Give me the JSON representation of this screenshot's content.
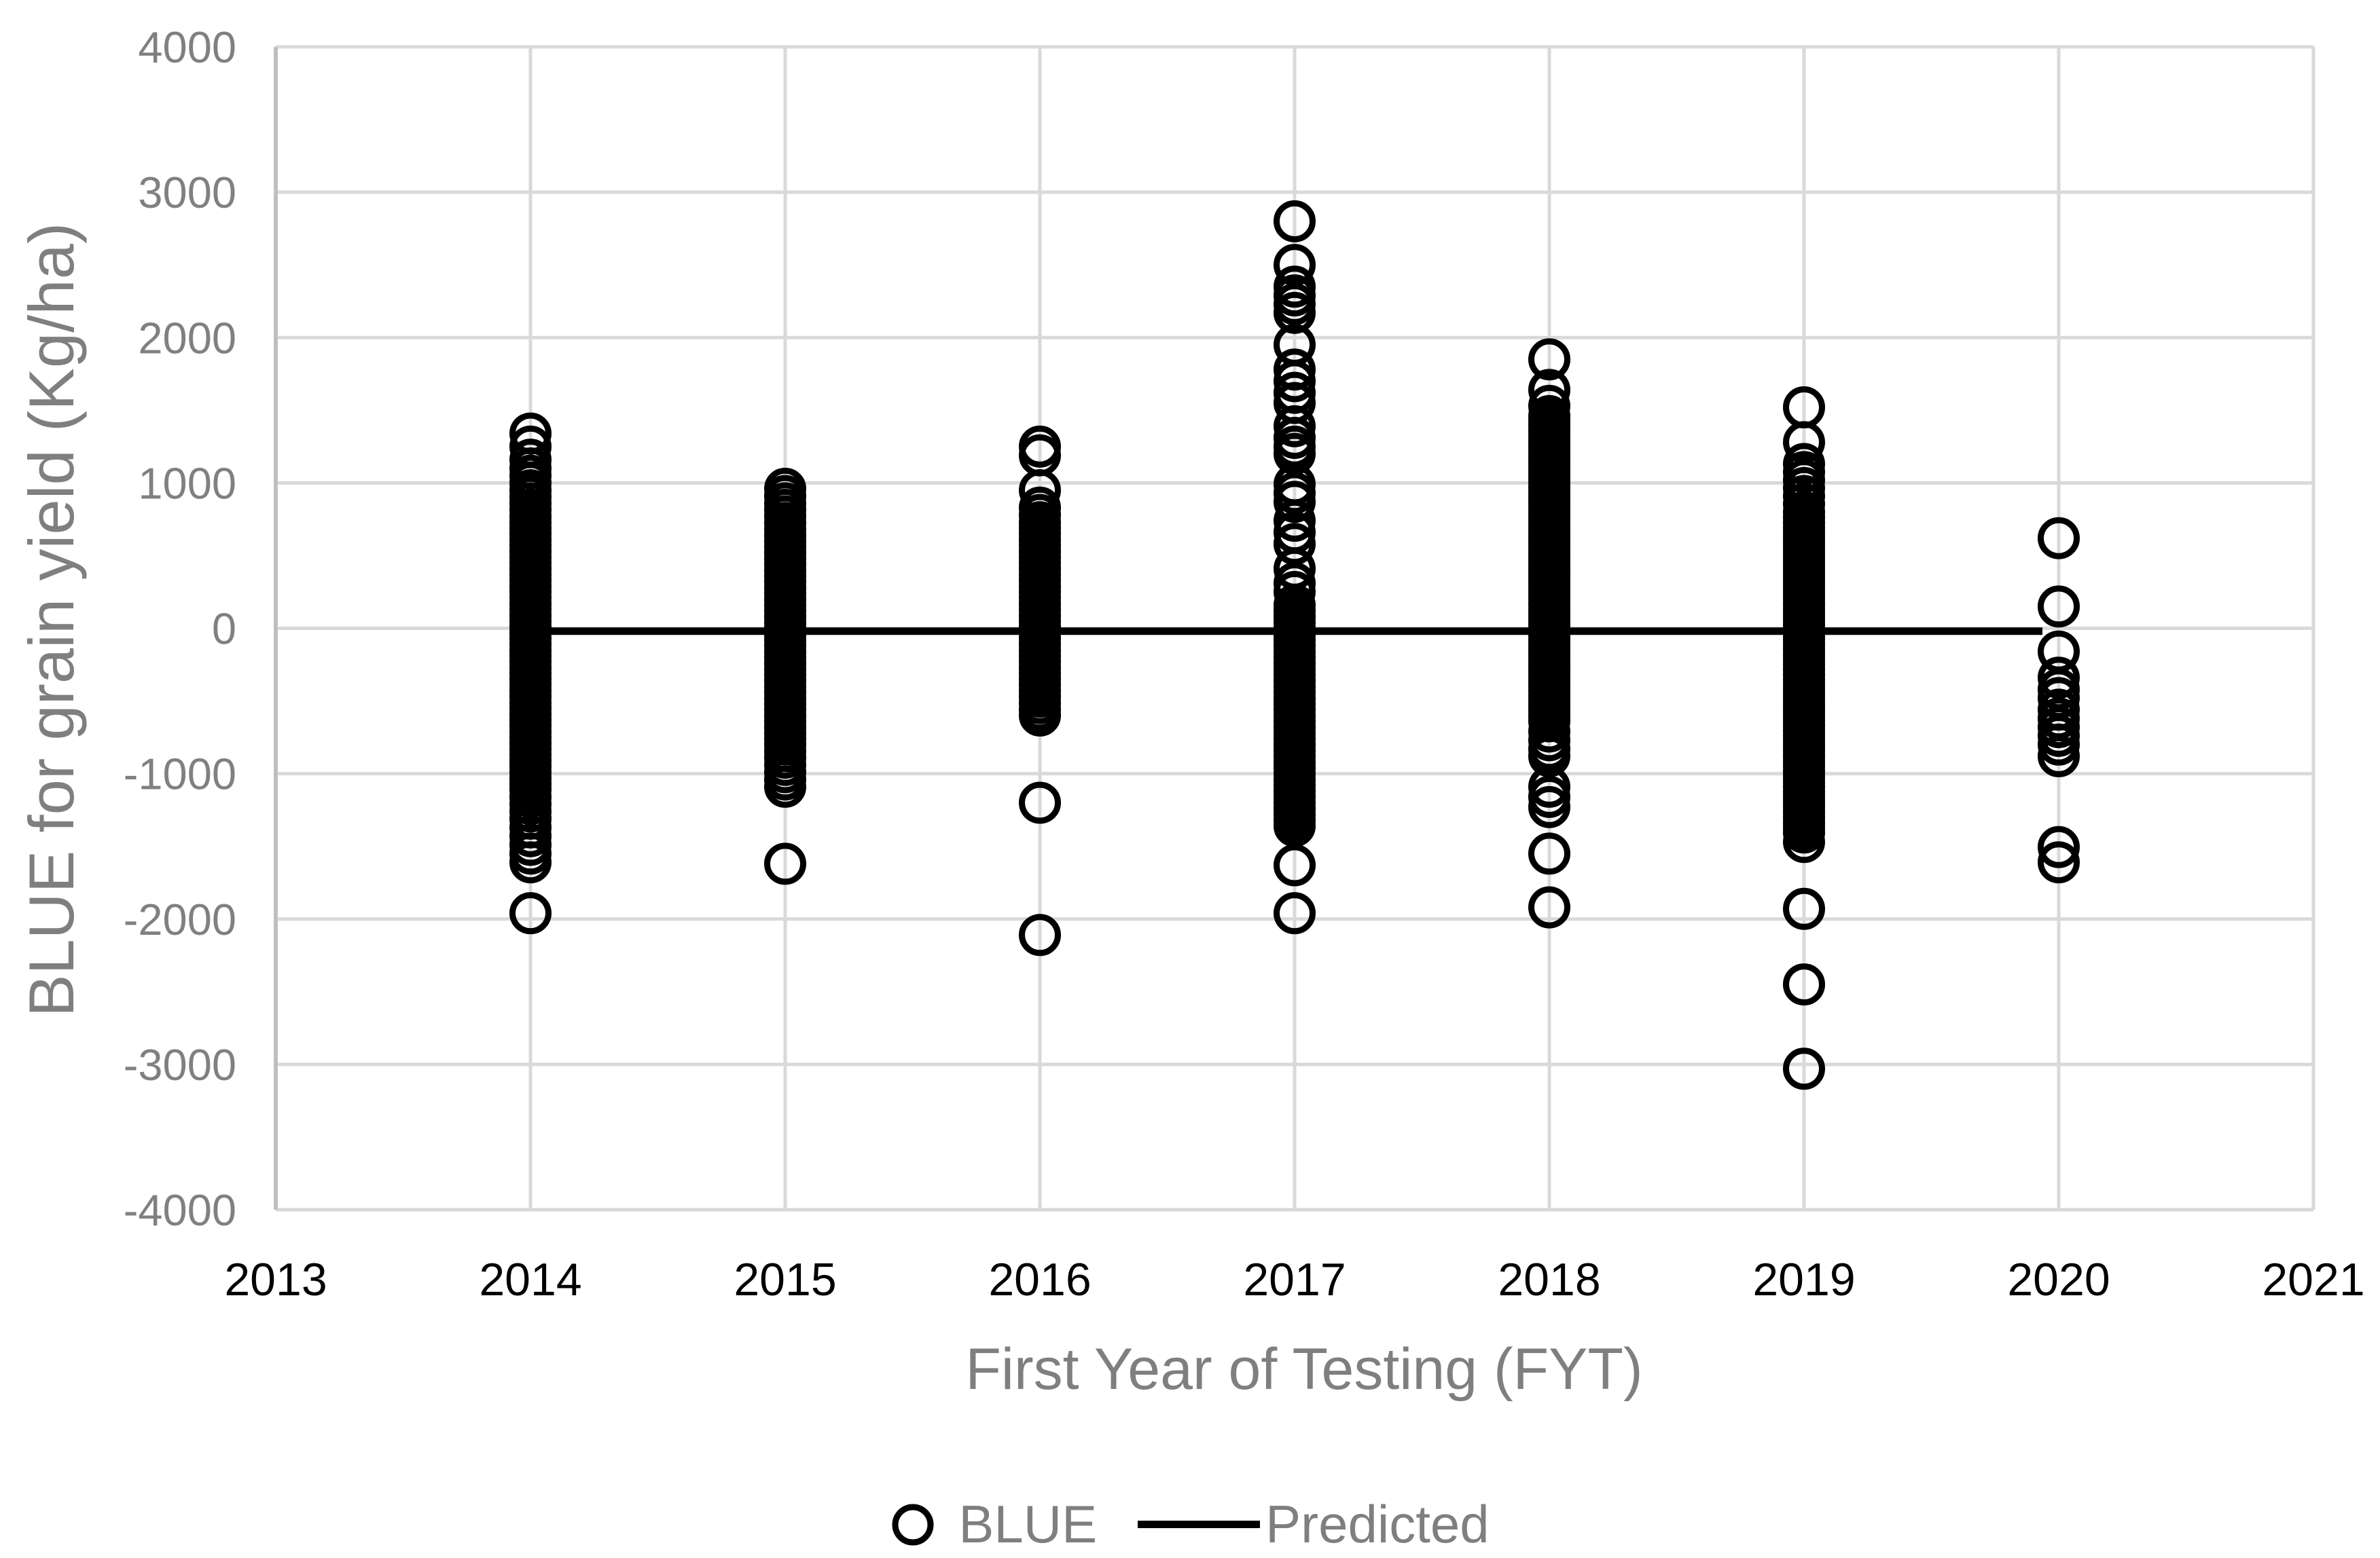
{
  "figure": {
    "background": "#ffffff"
  },
  "style": {
    "marker_color": "#000000",
    "predicted_line_color": "#000000",
    "gridline_color": "#d9d9d9",
    "axis_line_color": "#bfbfbf",
    "y_tick_color": "#808080",
    "x_tick_color": "#000000",
    "title_color": "#7f7f7f",
    "legend_text_color": "#7f7f7f"
  },
  "legend": {
    "items": [
      {
        "label": "BLUE",
        "marker": "open-circle-icon"
      },
      {
        "label": "Predicted",
        "marker": "line-icon"
      }
    ]
  },
  "chart_data": {
    "type": "scatter",
    "title": "",
    "xlabel": "First Year of Testing (FYT)",
    "ylabel": "BLUE for grain yield (Kg/ha)",
    "xlim": [
      2013,
      2021
    ],
    "ylim": [
      -4000,
      4000
    ],
    "x_ticks": [
      2013,
      2014,
      2015,
      2016,
      2017,
      2018,
      2019,
      2020,
      2021
    ],
    "y_ticks": [
      4000,
      3000,
      2000,
      1000,
      0,
      -1000,
      -2000,
      -3000,
      -4000
    ],
    "grid": true,
    "legend_position": "bottom",
    "series": [
      {
        "name": "BLUE",
        "type": "scatter",
        "marker": "open-circle",
        "color": "#000000",
        "groups": [
          {
            "x": 2014,
            "values": [
              1340,
              1250,
              1160,
              1100,
              1050,
              1000,
              950,
              905,
              860,
              815,
              770,
              730,
              690,
              650,
              610,
              570,
              530,
              490,
              450,
              410,
              370,
              330,
              290,
              250,
              210,
              170,
              130,
              90,
              50,
              10,
              -30,
              -70,
              -110,
              -150,
              -190,
              -230,
              -270,
              -310,
              -350,
              -390,
              -430,
              -470,
              -510,
              -550,
              -590,
              -630,
              -670,
              -710,
              -750,
              -790,
              -830,
              -870,
              -910,
              -950,
              -990,
              -1030,
              -1070,
              -1110,
              -1160,
              -1210,
              -1260,
              -1310,
              -1370,
              -1430,
              -1490,
              -1550,
              -1610,
              -1960
            ]
          },
          {
            "x": 2015,
            "values": [
              960,
              910,
              860,
              815,
              770,
              725,
              680,
              640,
              600,
              560,
              520,
              480,
              440,
              400,
              360,
              320,
              280,
              240,
              200,
              160,
              120,
              80,
              40,
              0,
              -40,
              -80,
              -120,
              -160,
              -200,
              -240,
              -280,
              -320,
              -360,
              -400,
              -440,
              -480,
              -520,
              -560,
              -600,
              -640,
              -680,
              -720,
              -760,
              -800,
              -845,
              -890,
              -940,
              -990,
              -1040,
              -1090,
              -1620
            ]
          },
          {
            "x": 2016,
            "values": [
              1250,
              1190,
              950,
              830,
              780,
              730,
              690,
              650,
              610,
              570,
              530,
              490,
              450,
              410,
              370,
              330,
              290,
              250,
              210,
              170,
              130,
              90,
              50,
              10,
              -30,
              -70,
              -110,
              -150,
              -190,
              -230,
              -270,
              -310,
              -350,
              -390,
              -430,
              -470,
              -515,
              -560,
              -600,
              -1200,
              -2110
            ]
          },
          {
            "x": 2017,
            "values": [
              2800,
              2500,
              2350,
              2290,
              2230,
              2170,
              1950,
              1780,
              1700,
              1620,
              1550,
              1390,
              1310,
              1250,
              1200,
              990,
              930,
              870,
              740,
              660,
              580,
              410,
              310,
              250,
              160,
              120,
              80,
              40,
              0,
              -40,
              -80,
              -120,
              -160,
              -200,
              -240,
              -280,
              -320,
              -360,
              -400,
              -440,
              -480,
              -520,
              -560,
              -600,
              -640,
              -680,
              -720,
              -760,
              -800,
              -840,
              -880,
              -920,
              -960,
              -1000,
              -1040,
              -1080,
              -1120,
              -1160,
              -1200,
              -1240,
              -1280,
              -1320,
              -1360,
              -1630,
              -1960
            ]
          },
          {
            "x": 2018,
            "values": [
              1850,
              1640,
              1530,
              1460,
              1425,
              1390,
              1355,
              1320,
              1285,
              1250,
              1215,
              1180,
              1145,
              1110,
              1075,
              1040,
              1005,
              970,
              935,
              900,
              865,
              830,
              795,
              760,
              725,
              690,
              655,
              620,
              585,
              550,
              515,
              480,
              445,
              410,
              375,
              340,
              305,
              270,
              235,
              200,
              165,
              130,
              95,
              60,
              25,
              -10,
              -45,
              -80,
              -115,
              -150,
              -185,
              -220,
              -255,
              -290,
              -325,
              -360,
              -395,
              -430,
              -465,
              -500,
              -535,
              -570,
              -605,
              -640,
              -710,
              -770,
              -830,
              -880,
              -1090,
              -1160,
              -1230,
              -1550,
              -1920
            ]
          },
          {
            "x": 2019,
            "values": [
              1520,
              1280,
              1130,
              1075,
              1020,
              965,
              910,
              855,
              800,
              765,
              730,
              695,
              660,
              625,
              590,
              555,
              520,
              485,
              450,
              415,
              380,
              345,
              310,
              275,
              240,
              205,
              170,
              135,
              100,
              65,
              30,
              -5,
              -40,
              -75,
              -110,
              -145,
              -180,
              -215,
              -250,
              -285,
              -320,
              -355,
              -390,
              -425,
              -460,
              -495,
              -530,
              -565,
              -600,
              -635,
              -670,
              -705,
              -740,
              -775,
              -810,
              -845,
              -880,
              -915,
              -950,
              -985,
              -1020,
              -1055,
              -1090,
              -1125,
              -1160,
              -1195,
              -1230,
              -1265,
              -1300,
              -1335,
              -1370,
              -1405,
              -1470,
              -1930,
              -2450,
              -3030
            ]
          },
          {
            "x": 2020,
            "values": [
              620,
              150,
              -160,
              -340,
              -420,
              -480,
              -560,
              -620,
              -680,
              -740,
              -800,
              -880,
              -1505,
              -1610
            ]
          }
        ]
      },
      {
        "name": "Predicted",
        "type": "line",
        "color": "#000000",
        "points": [
          {
            "x": 2014,
            "y": -20
          },
          {
            "x": 2020,
            "y": -20
          }
        ]
      }
    ]
  }
}
